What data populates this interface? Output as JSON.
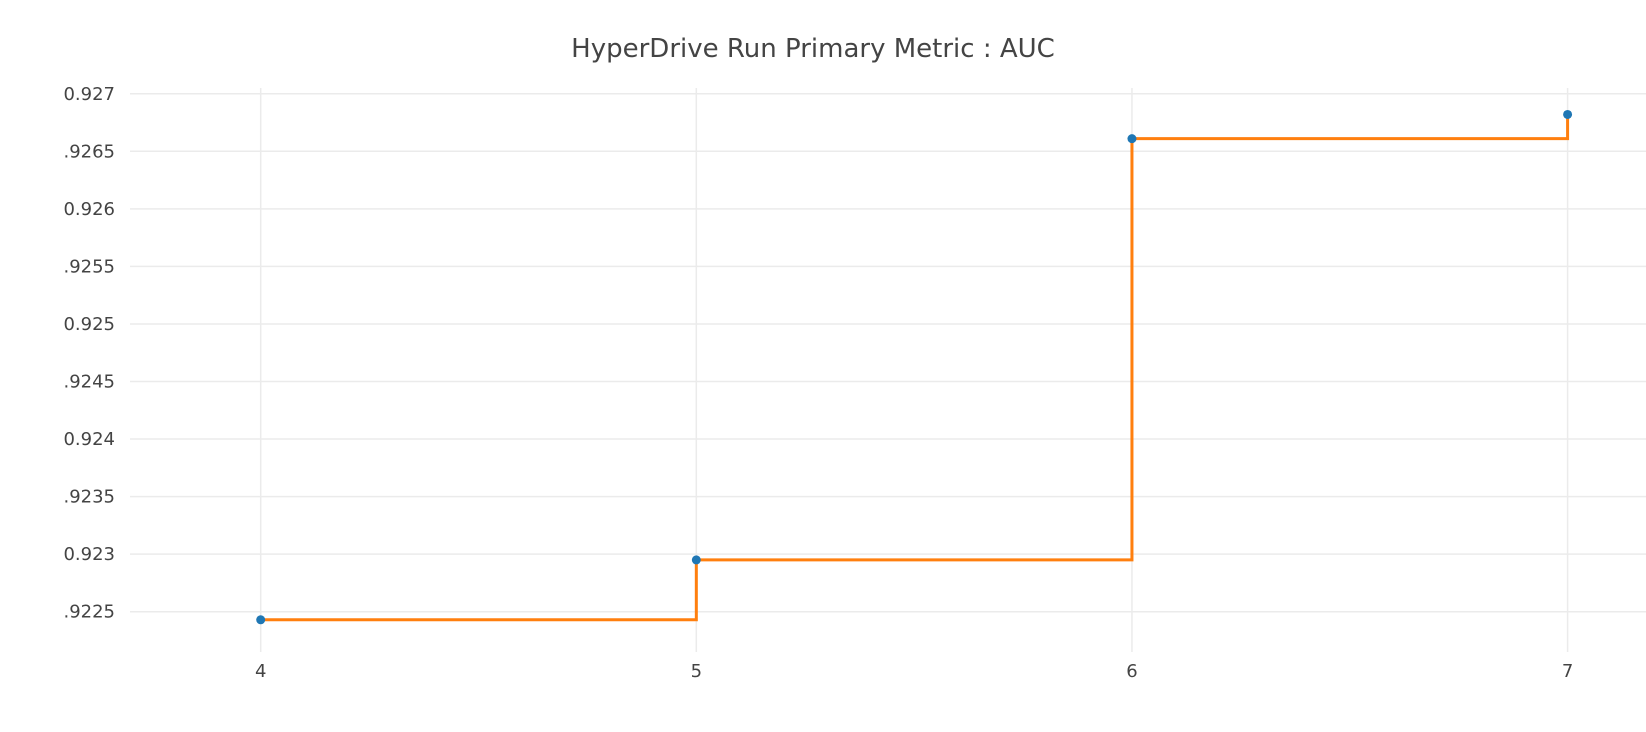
{
  "chart_data": {
    "type": "line",
    "title": "HyperDrive Run Primary Metric : AUC",
    "xlabel": "",
    "ylabel": "",
    "x_ticks": [
      "4",
      "5",
      "6",
      "7"
    ],
    "y_ticks": [
      {
        "value": 0.9225,
        "label": ".9225"
      },
      {
        "value": 0.923,
        "label": "0.923"
      },
      {
        "value": 0.9235,
        "label": ".9235"
      },
      {
        "value": 0.924,
        "label": "0.924"
      },
      {
        "value": 0.9245,
        "label": ".9245"
      },
      {
        "value": 0.925,
        "label": "0.925"
      },
      {
        "value": 0.9255,
        "label": ".9255"
      },
      {
        "value": 0.926,
        "label": "0.926"
      },
      {
        "value": 0.9265,
        "label": ".9265"
      },
      {
        "value": 0.927,
        "label": "0.927"
      }
    ],
    "xlim": [
      3.7,
      7.18
    ],
    "ylim": [
      0.92215,
      0.92705
    ],
    "grid": true,
    "series": [
      {
        "kind": "scatter",
        "color": "#1f77b4",
        "x": [
          4,
          5,
          6,
          7
        ],
        "y": [
          0.92243,
          0.92295,
          0.92661,
          0.92682
        ]
      },
      {
        "kind": "step",
        "color": "#ff7f0e",
        "x": [
          4,
          5,
          6,
          7
        ],
        "y": [
          0.92243,
          0.92295,
          0.92661,
          0.92682
        ]
      }
    ]
  }
}
